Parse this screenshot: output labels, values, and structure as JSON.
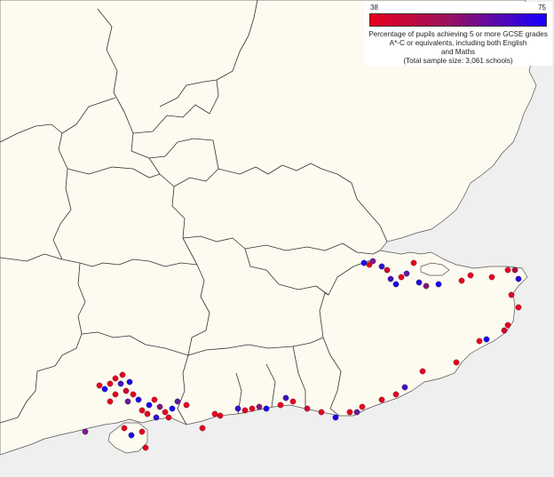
{
  "legend": {
    "min_label": "38",
    "max_label": "75",
    "title_line1": "Percentage of pupils achieving 5 or more GCSE grades",
    "title_line2": "A*-C or equivalents, including both English",
    "title_line3": "and Maths",
    "sample_note": "(Total sample size: 3,061 schools)",
    "color_low": "#e8001c",
    "color_high": "#1400ff"
  },
  "colors": {
    "land": "#fdfaf0",
    "sea": "#efefef",
    "boundary": "#333333"
  },
  "school_dots_color_scale": "red (low %) to blue (high %)"
}
